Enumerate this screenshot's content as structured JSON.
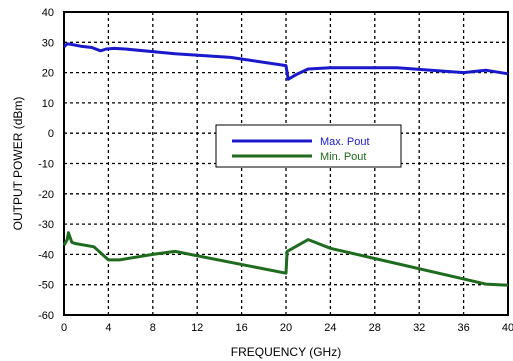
{
  "chart_data": {
    "type": "line",
    "title": "",
    "xlabel": "FREQUENCY (GHz)",
    "ylabel": "OUTPUT POWER (dBm)",
    "xlim": [
      0,
      40
    ],
    "ylim": [
      -60,
      40
    ],
    "x_ticks": [
      "0",
      "4",
      "8",
      "12",
      "16",
      "20",
      "24",
      "28",
      "32",
      "36",
      "40"
    ],
    "y_ticks": [
      "40",
      "30",
      "20",
      "10",
      "0",
      "-10",
      "-20",
      "-30",
      "-40",
      "-50",
      "-60"
    ],
    "grid": true,
    "legend_position": "center",
    "series": [
      {
        "name": "Max. Pout",
        "color": "#1a1acc",
        "x": [
          0,
          0.3,
          0.8,
          1.5,
          2.5,
          3.3,
          3.8,
          4.5,
          5.5,
          10,
          15,
          20,
          20.2,
          21,
          22,
          24,
          30,
          36,
          38,
          40
        ],
        "y": [
          28.5,
          29.5,
          29.2,
          28.7,
          28.3,
          27.2,
          27.8,
          28.0,
          27.8,
          26.2,
          25.0,
          22.3,
          17.8,
          19.5,
          21.2,
          21.6,
          21.6,
          20.0,
          20.8,
          19.6
        ]
      },
      {
        "name": "Min. Pout",
        "color": "#1f6b1f",
        "x": [
          0,
          0.3,
          0.4,
          0.7,
          1.0,
          2.7,
          4.0,
          5.0,
          8.0,
          10.0,
          20.0,
          20.1,
          22.0,
          24.0,
          38.0,
          40.0
        ],
        "y": [
          -37,
          -35,
          -32.8,
          -36,
          -36.4,
          -37.5,
          -41.8,
          -41.8,
          -40.0,
          -39.0,
          -46.2,
          -39.0,
          -35.1,
          -38.0,
          -49.8,
          -50.2
        ]
      }
    ]
  }
}
